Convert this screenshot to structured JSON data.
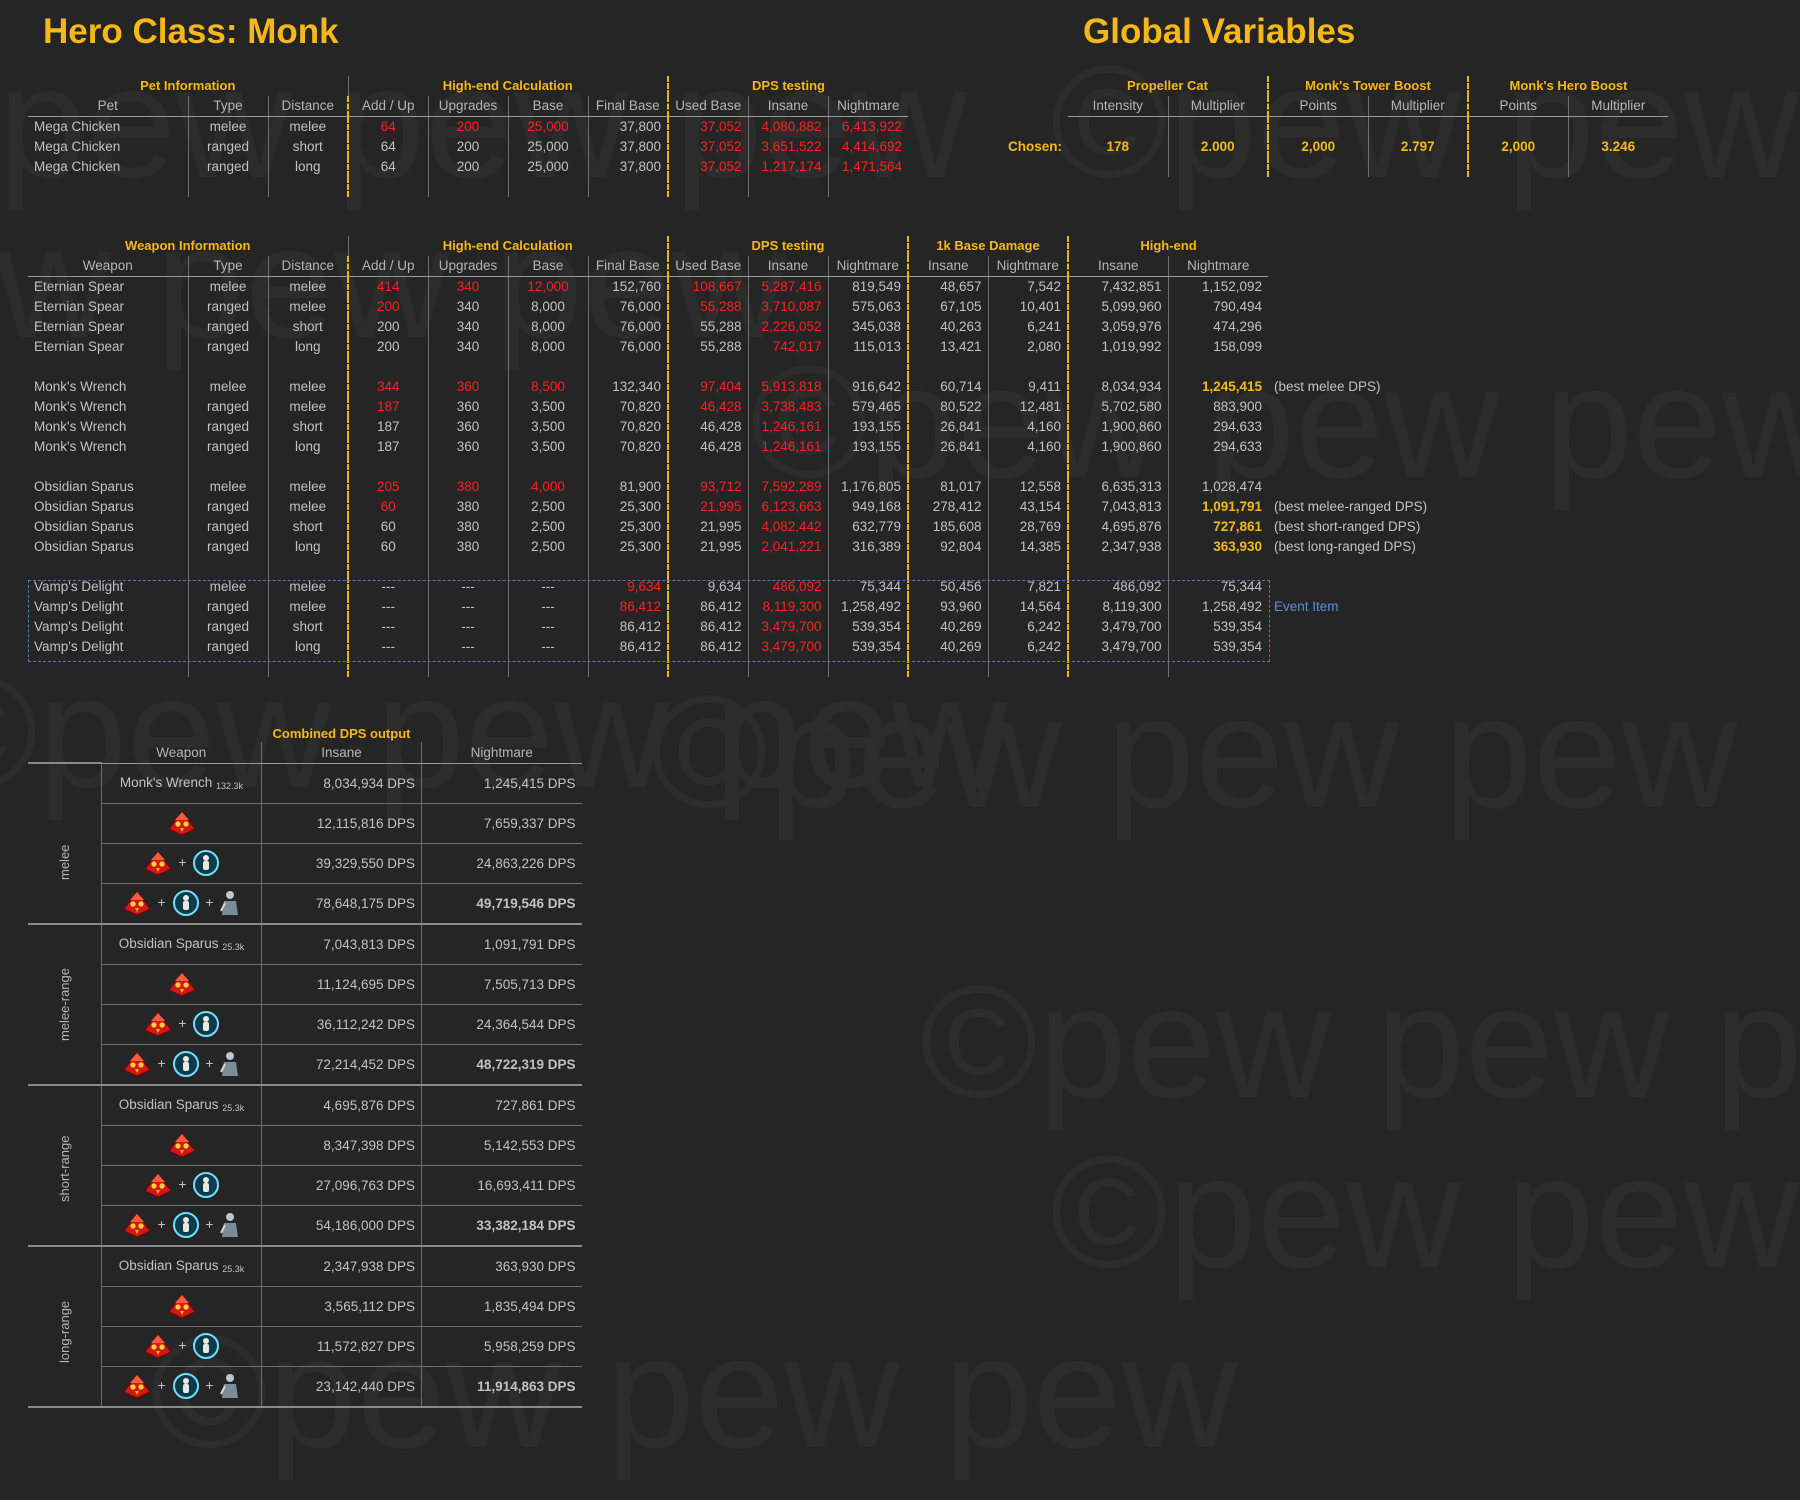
{
  "titles": {
    "hero": "Hero Class: Monk",
    "global": "Global Variables"
  },
  "pet": {
    "sections": {
      "info": "Pet Information",
      "calc": "High-end Calculation",
      "dps": "DPS testing"
    },
    "headers": [
      "Pet",
      "Type",
      "Distance",
      "Add / Up",
      "Upgrades",
      "Base",
      "Final Base",
      "Used Base",
      "Insane",
      "Nightmare"
    ],
    "rows": [
      [
        "Mega Chicken",
        "melee",
        "melee",
        "64",
        "200",
        "25,000",
        "37,800",
        "37,052",
        "4,080,882",
        "6,413,922"
      ],
      [
        "Mega Chicken",
        "ranged",
        "short",
        "64",
        "200",
        "25,000",
        "37,800",
        "37,052",
        "3,651,522",
        "4,414,692"
      ],
      [
        "Mega Chicken",
        "ranged",
        "long",
        "64",
        "200",
        "25,000",
        "37,800",
        "37,052",
        "1,217,174",
        "1,471,564"
      ]
    ]
  },
  "globals": {
    "sections": {
      "cat": "Propeller Cat",
      "tower": "Monk's Tower Boost",
      "hero": "Monk's Hero Boost"
    },
    "headers": [
      "Intensity",
      "Multiplier",
      "Points",
      "Multiplier",
      "Points",
      "Multiplier"
    ],
    "chosen_label": "Chosen:",
    "chosen": [
      "178",
      "2.000",
      "2,000",
      "2.797",
      "2,000",
      "3.246"
    ]
  },
  "weapon": {
    "sections": {
      "info": "Weapon Information",
      "calc": "High-end Calculation",
      "dps": "DPS testing",
      "k1": "1k Base Damage",
      "high": "High-end"
    },
    "headers": [
      "Weapon",
      "Type",
      "Distance",
      "Add / Up",
      "Upgrades",
      "Base",
      "Final Base",
      "Used Base",
      "Insane",
      "Nightmare",
      "Insane",
      "Nightmare",
      "Insane",
      "Nightmare"
    ],
    "groups": [
      [
        [
          "Eternian Spear",
          "melee",
          "melee",
          "414",
          "340",
          "12,000",
          "152,760",
          "108,667",
          "5,287,416",
          "819,549",
          "48,657",
          "7,542",
          "7,432,851",
          "1,152,092",
          ""
        ],
        [
          "Eternian Spear",
          "ranged",
          "melee",
          "200",
          "340",
          "8,000",
          "76,000",
          "55,288",
          "3,710,087",
          "575,063",
          "67,105",
          "10,401",
          "5,099,960",
          "790,494",
          ""
        ],
        [
          "Eternian Spear",
          "ranged",
          "short",
          "200",
          "340",
          "8,000",
          "76,000",
          "55,288",
          "2,226,052",
          "345,038",
          "40,263",
          "6,241",
          "3,059,976",
          "474,296",
          ""
        ],
        [
          "Eternian Spear",
          "ranged",
          "long",
          "200",
          "340",
          "8,000",
          "76,000",
          "55,288",
          "742,017",
          "115,013",
          "13,421",
          "2,080",
          "1,019,992",
          "158,099",
          ""
        ]
      ],
      [
        [
          "Monk's Wrench",
          "melee",
          "melee",
          "344",
          "360",
          "8,500",
          "132,340",
          "97,404",
          "5,913,818",
          "916,642",
          "60,714",
          "9,411",
          "8,034,934",
          "1,245,415",
          "(best melee DPS)"
        ],
        [
          "Monk's Wrench",
          "ranged",
          "melee",
          "187",
          "360",
          "3,500",
          "70,820",
          "46,428",
          "3,738,483",
          "579,465",
          "80,522",
          "12,481",
          "5,702,580",
          "883,900",
          ""
        ],
        [
          "Monk's Wrench",
          "ranged",
          "short",
          "187",
          "360",
          "3,500",
          "70,820",
          "46,428",
          "1,246,161",
          "193,155",
          "26,841",
          "4,160",
          "1,900,860",
          "294,633",
          ""
        ],
        [
          "Monk's Wrench",
          "ranged",
          "long",
          "187",
          "360",
          "3,500",
          "70,820",
          "46,428",
          "1,246,161",
          "193,155",
          "26,841",
          "4,160",
          "1,900,860",
          "294,633",
          ""
        ]
      ],
      [
        [
          "Obsidian Sparus",
          "melee",
          "melee",
          "205",
          "380",
          "4,000",
          "81,900",
          "93,712",
          "7,592,289",
          "1,176,805",
          "81,017",
          "12,558",
          "6,635,313",
          "1,028,474",
          ""
        ],
        [
          "Obsidian Sparus",
          "ranged",
          "melee",
          "60",
          "380",
          "2,500",
          "25,300",
          "21,995",
          "6,123,663",
          "949,168",
          "278,412",
          "43,154",
          "7,043,813",
          "1,091,791",
          "(best melee-ranged DPS)"
        ],
        [
          "Obsidian Sparus",
          "ranged",
          "short",
          "60",
          "380",
          "2,500",
          "25,300",
          "21,995",
          "4,082,442",
          "632,779",
          "185,608",
          "28,769",
          "4,695,876",
          "727,861",
          "(best short-ranged DPS)"
        ],
        [
          "Obsidian Sparus",
          "ranged",
          "long",
          "60",
          "380",
          "2,500",
          "25,300",
          "21,995",
          "2,041,221",
          "316,389",
          "92,804",
          "14,385",
          "2,347,938",
          "363,930",
          "(best long-ranged DPS)"
        ]
      ],
      [
        [
          "Vamp's Delight",
          "melee",
          "melee",
          "---",
          "---",
          "---",
          "9,634",
          "9,634",
          "486,092",
          "75,344",
          "50,456",
          "7,821",
          "486,092",
          "75,344",
          ""
        ],
        [
          "Vamp's Delight",
          "ranged",
          "melee",
          "---",
          "---",
          "---",
          "86,412",
          "86,412",
          "8,119,300",
          "1,258,492",
          "93,960",
          "14,564",
          "8,119,300",
          "1,258,492",
          "Event Item"
        ],
        [
          "Vamp's Delight",
          "ranged",
          "short",
          "---",
          "---",
          "---",
          "86,412",
          "86,412",
          "3,479,700",
          "539,354",
          "40,269",
          "6,242",
          "3,479,700",
          "539,354",
          ""
        ],
        [
          "Vamp's Delight",
          "ranged",
          "long",
          "---",
          "---",
          "---",
          "86,412",
          "86,412",
          "3,479,700",
          "539,354",
          "40,269",
          "6,242",
          "3,479,700",
          "539,354",
          ""
        ]
      ]
    ]
  },
  "combined": {
    "title": "Combined DPS output",
    "headers": [
      "Weapon",
      "Insane",
      "Nightmare"
    ],
    "unit": "DPS",
    "plus": "+",
    "groups": [
      {
        "label": "melee",
        "weapon": "Monk's Wrench",
        "sub": "132.3k",
        "rows": [
          [
            "8,034,934",
            "1,245,415"
          ],
          [
            "12,115,816",
            "7,659,337"
          ],
          [
            "39,329,550",
            "24,863,226"
          ],
          [
            "78,648,175",
            "49,719,546"
          ]
        ]
      },
      {
        "label": "melee-range",
        "weapon": "Obsidian Sparus",
        "sub": "25.3k",
        "rows": [
          [
            "7,043,813",
            "1,091,791"
          ],
          [
            "11,124,695",
            "7,505,713"
          ],
          [
            "36,112,242",
            "24,364,544"
          ],
          [
            "72,214,452",
            "48,722,319"
          ]
        ]
      },
      {
        "label": "short-range",
        "weapon": "Obsidian Sparus",
        "sub": "25.3k",
        "rows": [
          [
            "4,695,876",
            "727,861"
          ],
          [
            "8,347,398",
            "5,142,553"
          ],
          [
            "27,096,763",
            "16,693,411"
          ],
          [
            "54,186,000",
            "33,382,184"
          ]
        ]
      },
      {
        "label": "long-range",
        "weapon": "Obsidian Sparus",
        "sub": "25.3k",
        "rows": [
          [
            "2,347,938",
            "363,930"
          ],
          [
            "3,565,112",
            "1,835,494"
          ],
          [
            "11,572,827",
            "5,958,259"
          ],
          [
            "23,142,440",
            "11,914,863"
          ]
        ]
      }
    ]
  },
  "watermark": "©pew pew pew",
  "icons": {
    "chicken": "mega-chicken-icon",
    "cat": "propeller-cat-icon",
    "monk": "monk-hero-icon"
  },
  "colors": {
    "accent": "#f4b81a",
    "warn": "#ff2020",
    "event": "#5b8fd9",
    "bg": "#252525"
  }
}
